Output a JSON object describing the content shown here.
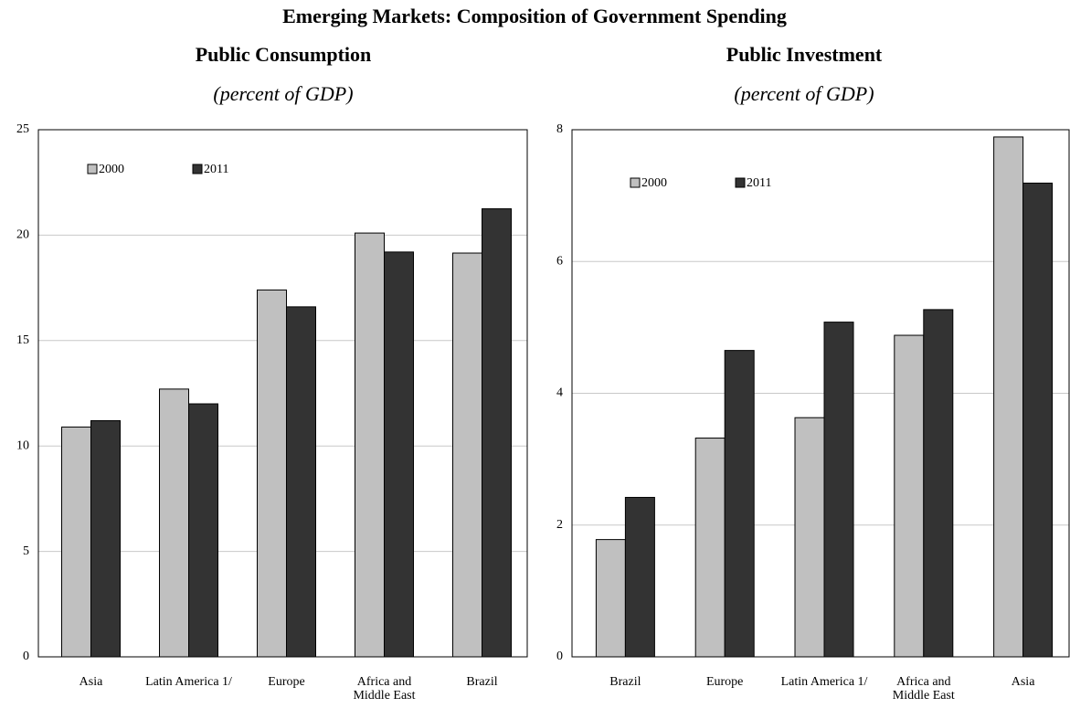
{
  "title": "Emerging Markets: Composition of Government Spending",
  "chart_data": [
    {
      "type": "bar",
      "title": "Public Consumption",
      "subtitle": "(percent of GDP)",
      "categories": [
        "Asia",
        "Latin America 1/",
        "Europe",
        "Africa and Middle East",
        "Brazil"
      ],
      "series": [
        {
          "name": "2000",
          "color": "#c0c0c0",
          "values": [
            10.9,
            12.7,
            17.4,
            20.1,
            19.15
          ]
        },
        {
          "name": "2011",
          "color": "#333333",
          "values": [
            11.2,
            12.0,
            16.6,
            19.2,
            21.25
          ]
        }
      ],
      "ylim": [
        0,
        25
      ],
      "yticks": [
        0,
        5,
        10,
        15,
        20,
        25
      ],
      "grid": true,
      "legend": "upper left"
    },
    {
      "type": "bar",
      "title": "Public Investment",
      "subtitle": "(percent of GDP)",
      "categories": [
        "Brazil",
        "Europe",
        "Latin America 1/",
        "Africa and Middle East",
        "Asia"
      ],
      "series": [
        {
          "name": "2000",
          "color": "#c0c0c0",
          "values": [
            1.78,
            3.32,
            3.63,
            4.88,
            7.89
          ]
        },
        {
          "name": "2011",
          "color": "#333333",
          "values": [
            2.42,
            4.65,
            5.08,
            5.27,
            7.19
          ]
        }
      ],
      "ylim": [
        0,
        8
      ],
      "yticks": [
        0,
        2,
        4,
        6,
        8
      ],
      "grid": true,
      "legend": "upper left"
    }
  ]
}
